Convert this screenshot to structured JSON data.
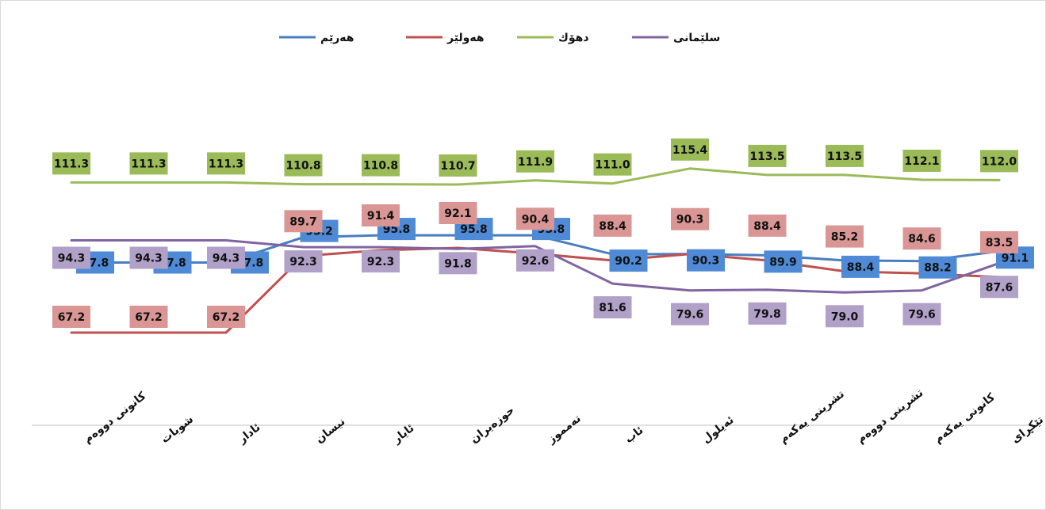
{
  "chart_data": {
    "type": "line",
    "title": "",
    "xlabel": "",
    "ylabel": "",
    "ylim": [
      40,
      140
    ],
    "grid": false,
    "legend_position": "top",
    "categories": [
      "كانونى دووەم",
      "شوبات",
      "ئادار",
      "نيسان",
      "ئايار",
      "حوزەيران",
      "تەمموز",
      "ئاب",
      "ئەيلول",
      "تشرينى يەكەم",
      "تشرينى دووەم",
      "كانونى يەكەم",
      "تێكڕاى"
    ],
    "series": [
      {
        "name": "هەرێم",
        "color": "#4a7dbf",
        "label_bg": "#4f8ad6",
        "values": [
          87.8,
          87.8,
          87.8,
          95.2,
          95.8,
          95.8,
          95.8,
          90.2,
          90.3,
          89.9,
          88.4,
          88.2,
          91.1
        ]
      },
      {
        "name": "هەولێر",
        "color": "#c0504d",
        "label_bg": "#da9694",
        "values": [
          67.2,
          67.2,
          67.2,
          89.7,
          91.4,
          92.1,
          90.4,
          88.4,
          90.3,
          88.4,
          85.2,
          84.6,
          83.5
        ]
      },
      {
        "name": "دهۆك",
        "color": "#9bbb59",
        "label_bg": "#9bbb59",
        "values": [
          111.3,
          111.3,
          111.3,
          110.8,
          110.8,
          110.7,
          111.9,
          111.0,
          115.4,
          113.5,
          113.5,
          112.1,
          112.0
        ]
      },
      {
        "name": "سلێمانى",
        "color": "#8064a2",
        "label_bg": "#b1a0c7",
        "values": [
          94.3,
          94.3,
          94.3,
          92.3,
          92.3,
          91.8,
          92.6,
          81.6,
          79.6,
          79.8,
          79.0,
          79.6,
          87.6
        ]
      }
    ]
  }
}
